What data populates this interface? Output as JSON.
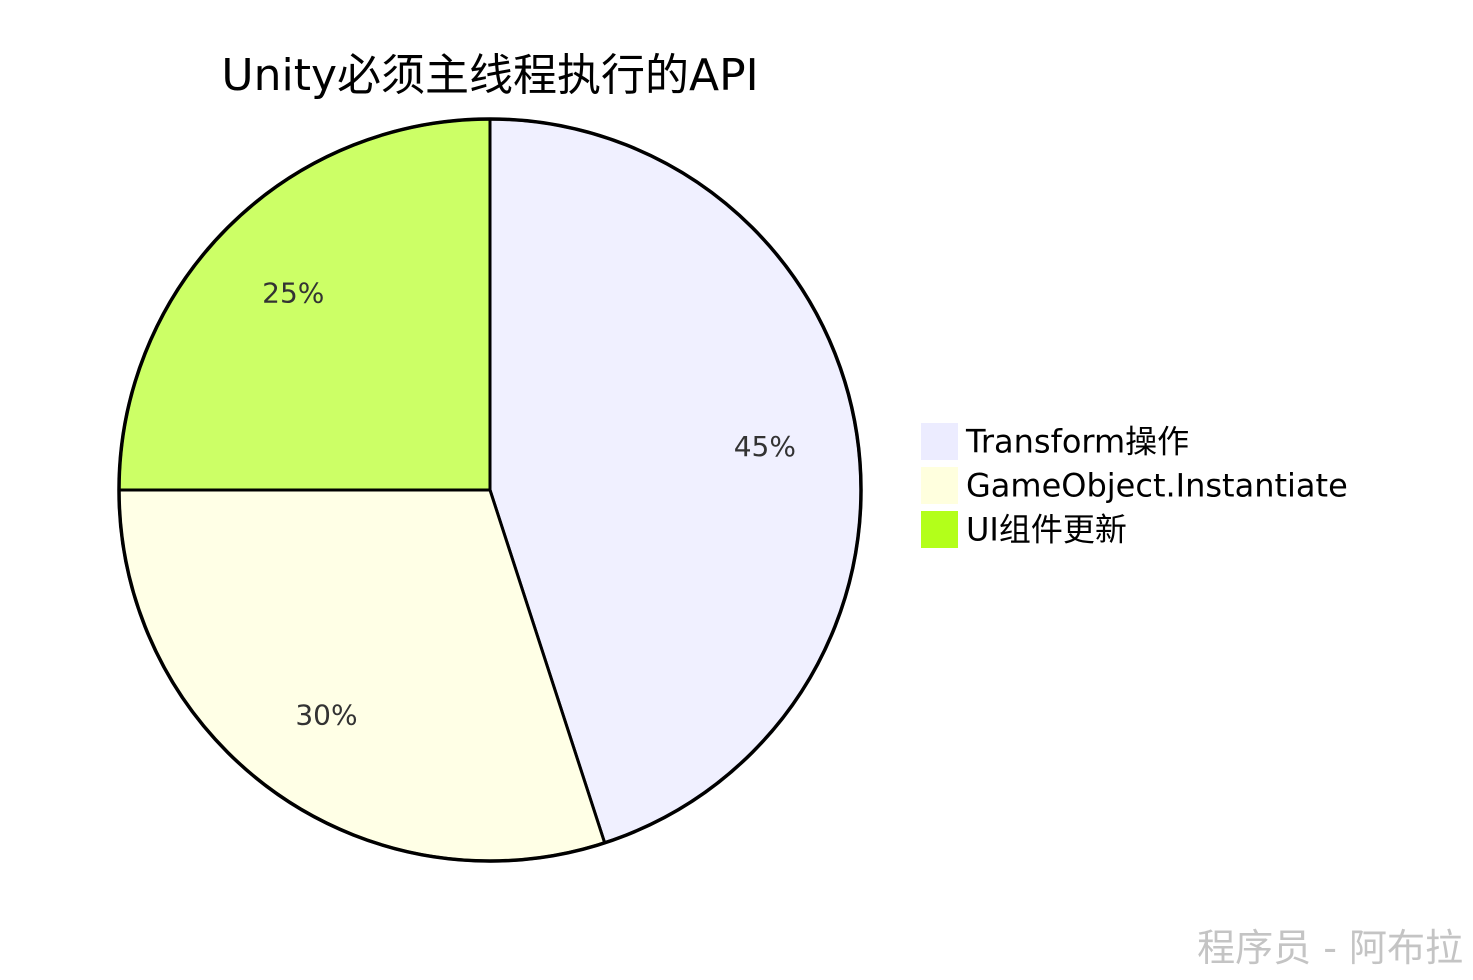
{
  "chart_data": {
    "type": "pie",
    "title": "Unity必须主线程执行的API",
    "slices": [
      {
        "label": "Transform操作",
        "value": 45,
        "percent_label": "45%",
        "color": "#f0f0ff"
      },
      {
        "label": "GameObject.Instantiate",
        "value": 30,
        "percent_label": "30%",
        "color": "#ffffe6"
      },
      {
        "label": "UI组件更新",
        "value": 25,
        "percent_label": "25%",
        "color": "#ccff66"
      }
    ],
    "legend_colors": [
      "#ececff",
      "#ffffde",
      "#b3ff1a"
    ],
    "legend_position": "right",
    "stroke_color": "#000000"
  },
  "watermark": "程序员 - 阿布拉"
}
